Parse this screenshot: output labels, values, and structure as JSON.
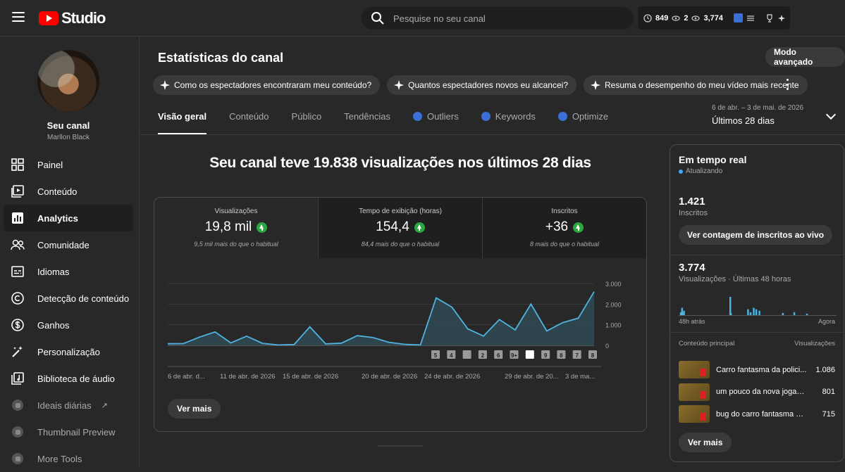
{
  "header": {
    "logo_text": "Studio",
    "search_placeholder": "Pesquise no seu canal",
    "stat_1": "849",
    "stat_2": "2",
    "stat_3": "3,774"
  },
  "sidebar": {
    "channel_name": "Seu canal",
    "channel_owner": "Marllon Black",
    "items": [
      {
        "label": "Painel",
        "icon": "dashboard-icon"
      },
      {
        "label": "Conteúdo",
        "icon": "content-icon"
      },
      {
        "label": "Analytics",
        "icon": "analytics-icon"
      },
      {
        "label": "Comunidade",
        "icon": "community-icon"
      },
      {
        "label": "Idiomas",
        "icon": "subtitles-icon"
      },
      {
        "label": "Detecção de conteúdo",
        "icon": "copyright-icon"
      },
      {
        "label": "Ganhos",
        "icon": "dollar-icon"
      },
      {
        "label": "Personalização",
        "icon": "magic-wand-icon"
      },
      {
        "label": "Biblioteca de áudio",
        "icon": "audio-library-icon"
      },
      {
        "label": "Ideais diárias",
        "icon": "vidiq-icon"
      },
      {
        "label": "Thumbnail Preview",
        "icon": "vidiq-icon"
      },
      {
        "label": "More Tools",
        "icon": "vidiq-icon"
      }
    ]
  },
  "main": {
    "title": "Estatísticas do canal",
    "advanced_button": "Modo avançado",
    "chips": [
      "Como os espectadores encontraram meu conteúdo?",
      "Quantos espectadores novos eu alcancei?",
      "Resuma o desempenho do meu vídeo mais recente"
    ],
    "tabs": [
      {
        "label": "Visão geral"
      },
      {
        "label": "Conteúdo"
      },
      {
        "label": "Público"
      },
      {
        "label": "Tendências"
      },
      {
        "label": "Outliers"
      },
      {
        "label": "Keywords"
      },
      {
        "label": "Optimize"
      }
    ],
    "date_range": "6 de abr. – 3 de mai. de 2026",
    "date_label": "Últimos 28 dias",
    "headline": "Seu canal teve 19.838 visualizações nos últimos 28 dias",
    "metrics": [
      {
        "label": "Visualizações",
        "value": "19,8 mil",
        "sub": "9,5 mil mais do que o habitual"
      },
      {
        "label": "Tempo de exibição (horas)",
        "value": "154,4",
        "sub": "84,4 mais do que o habitual"
      },
      {
        "label": "Inscritos",
        "value": "+36",
        "sub": "8 mais do que o habitual"
      }
    ],
    "see_more": "Ver mais"
  },
  "chart_data": {
    "type": "area",
    "y_ticks": [
      "3.000",
      "2.000",
      "1.000",
      "0"
    ],
    "ylim": [
      0,
      3000
    ],
    "x_tick_labels": [
      "6 de abr. d...",
      "11 de abr. de 2026",
      "15 de abr. de 2026",
      "20 de abr. de 2026",
      "24 de abr. de 2026",
      "29 de abr. de 20...",
      "3 de ma..."
    ],
    "values": [
      80,
      90,
      400,
      650,
      120,
      450,
      100,
      20,
      40,
      900,
      70,
      110,
      470,
      380,
      150,
      50,
      20,
      2300,
      1850,
      800,
      450,
      1250,
      750,
      2000,
      700,
      1100,
      1320,
      2600
    ],
    "marker_labels": [
      "5",
      "4",
      "",
      "2",
      "6",
      "9+",
      "",
      "9",
      "8",
      "7",
      "8"
    ]
  },
  "realtime": {
    "title": "Em tempo real",
    "status": "Atualizando",
    "subscribers": "1.421",
    "subscribers_label": "Inscritos",
    "live_button": "Ver contagem de inscritos ao vivo",
    "views": "3.774",
    "views_label": "Visualizações · Últimas 48 horas",
    "axis_start": "48h atrás",
    "axis_end": "Agora",
    "bars": [
      0,
      0,
      4,
      0,
      10,
      3,
      0,
      6,
      0,
      0,
      0,
      0,
      0,
      0,
      0,
      0,
      0,
      0,
      0,
      0,
      0,
      0,
      0,
      0,
      0,
      0,
      0,
      0,
      0,
      0,
      0,
      0,
      0,
      0,
      0,
      0,
      0,
      0,
      0,
      0,
      0,
      0,
      0,
      0,
      0,
      0,
      0,
      0,
      0,
      0,
      0,
      0,
      0,
      0,
      0,
      0,
      0,
      0,
      0,
      0,
      0,
      0,
      0,
      0,
      0,
      0,
      0,
      0,
      0,
      0,
      0,
      0,
      0,
      0,
      0,
      0,
      0,
      0,
      0,
      0,
      25,
      3,
      0,
      0,
      0,
      0,
      0,
      0,
      0,
      0,
      0,
      0,
      0,
      0,
      0,
      0,
      0,
      0,
      0,
      0,
      0,
      0,
      0,
      0,
      0,
      0,
      0,
      0,
      8,
      0,
      0,
      0,
      4,
      0,
      0,
      0,
      0,
      10,
      0,
      0,
      0,
      8,
      0,
      0,
      0,
      0,
      6,
      0,
      0,
      0,
      0,
      0,
      0,
      0,
      0,
      0,
      0,
      0,
      0,
      0,
      0,
      0,
      0,
      0,
      0,
      0,
      0,
      0,
      0,
      0,
      0,
      0,
      0,
      0,
      0,
      0,
      0,
      0,
      0,
      0,
      0,
      0,
      0,
      3,
      0,
      0,
      0,
      0,
      0,
      0,
      0,
      0,
      0,
      0,
      0,
      0,
      0,
      0,
      0,
      0,
      0,
      4,
      0,
      0,
      0,
      0,
      0,
      0,
      0,
      0,
      0,
      0,
      0,
      0,
      0,
      0,
      0,
      0,
      0,
      0,
      0,
      2,
      0,
      0,
      0,
      0,
      0,
      0,
      0,
      0,
      0,
      0,
      0,
      0,
      0,
      0,
      0,
      0,
      0,
      0,
      0,
      0,
      0,
      0,
      0,
      0,
      0,
      0,
      0,
      0,
      0,
      0,
      0,
      0,
      0,
      0,
      0,
      0,
      0,
      0,
      0,
      0,
      0,
      0,
      0,
      0,
      0,
      0,
      0
    ],
    "top_content_label": "Conteúdo principal",
    "top_views_label": "Visualizações",
    "top_content": [
      {
        "title": "Carro fantasma da polici...",
        "views": "1.086"
      },
      {
        "title": "um pouco da nova jogabili...",
        "views": "801"
      },
      {
        "title": "bug do carro fantasma da ...",
        "views": "715"
      }
    ],
    "see_more": "Ver mais"
  },
  "colors": {
    "accent": "#3ea6ff",
    "chart_line": "#4fb3e0",
    "chart_fill": "#2f4a55",
    "up_green": "#2ba640",
    "brand_red": "#ff0000"
  }
}
